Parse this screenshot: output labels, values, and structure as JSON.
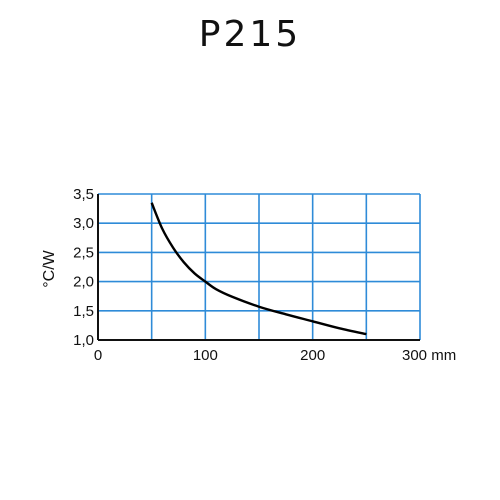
{
  "title": "P215",
  "chart_data": {
    "type": "line",
    "title": "P215",
    "xlabel": "mm",
    "ylabel": "°C/W",
    "xlim": [
      0,
      300
    ],
    "ylim": [
      1.0,
      3.5
    ],
    "x_ticks": [
      0,
      100,
      200,
      300
    ],
    "x_tick_labels": [
      "0",
      "100",
      "200",
      "300 mm"
    ],
    "y_ticks": [
      1.0,
      1.5,
      2.0,
      2.5,
      3.0,
      3.5
    ],
    "y_tick_labels": [
      "1,0",
      "1,5",
      "2,0",
      "2,5",
      "3,0",
      "3,5"
    ],
    "grid": true,
    "grid_color": "#2e8bd8",
    "line_color": "#000000",
    "series": [
      {
        "x": [
          50,
          60,
          70,
          80,
          90,
          100,
          110,
          125,
          150,
          175,
          200,
          225,
          250
        ],
        "values": [
          3.35,
          2.9,
          2.58,
          2.33,
          2.14,
          2.0,
          1.87,
          1.74,
          1.57,
          1.44,
          1.32,
          1.2,
          1.1
        ]
      }
    ]
  }
}
